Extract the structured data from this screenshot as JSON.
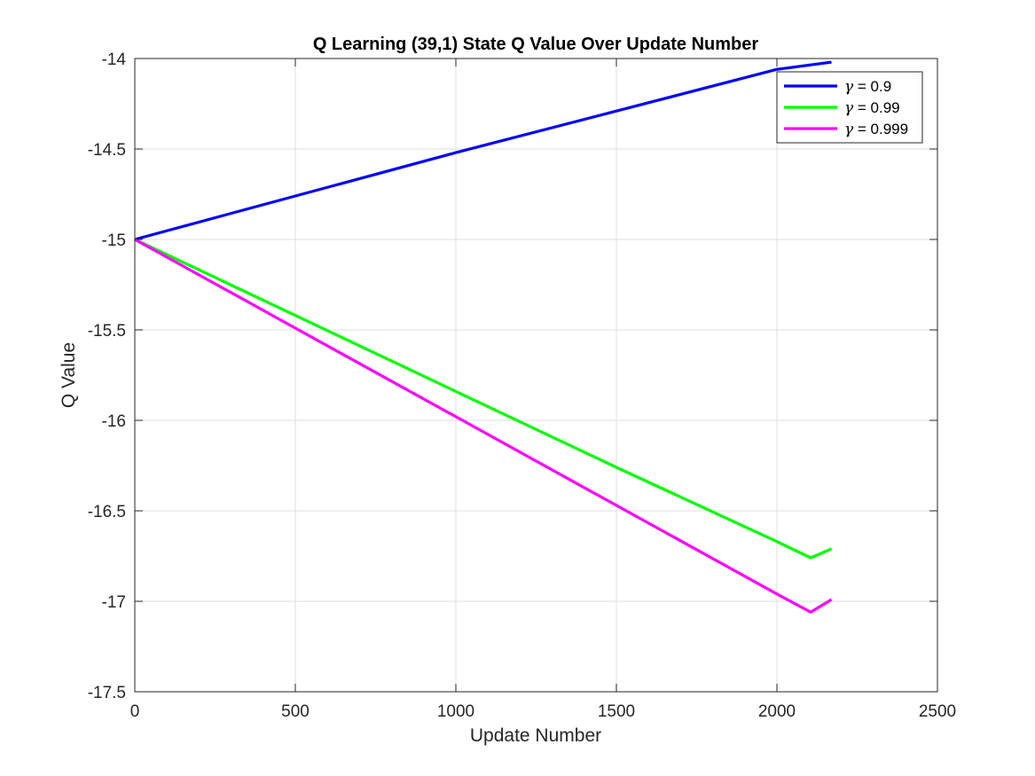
{
  "chart_data": {
    "type": "line",
    "title": "Q Learning (39,1) State Q Value Over Update Number",
    "xlabel": "Update Number",
    "ylabel": "Q Value",
    "xlim": [
      0,
      2500
    ],
    "ylim": [
      -17.5,
      -14
    ],
    "xticks": [
      0,
      500,
      1000,
      1500,
      2000,
      2500
    ],
    "yticks": [
      -14,
      -14.5,
      -15,
      -15.5,
      -16,
      -16.5,
      -17,
      -17.5
    ],
    "xtick_labels": [
      "0",
      "500",
      "1000",
      "1500",
      "2000",
      "2500"
    ],
    "ytick_labels": [
      "-14",
      "-14.5",
      "-15",
      "-15.5",
      "-16",
      "-16.5",
      "-17",
      "-17.5"
    ],
    "grid": true,
    "legend_position": "top-right",
    "series": [
      {
        "name": "0.9",
        "color": "#0000ff",
        "x": [
          0,
          500,
          1000,
          1500,
          2000,
          2170
        ],
        "y": [
          -15.0,
          -14.76,
          -14.52,
          -14.29,
          -14.06,
          -14.02
        ]
      },
      {
        "name": "0.99",
        "color": "#00ff00",
        "x": [
          0,
          500,
          1000,
          1500,
          2000,
          2105,
          2170
        ],
        "y": [
          -15.0,
          -15.42,
          -15.84,
          -16.26,
          -16.67,
          -16.76,
          -16.71
        ]
      },
      {
        "name": "0.999",
        "color": "#ff00ff",
        "x": [
          0,
          500,
          1000,
          1500,
          2000,
          2105,
          2170
        ],
        "y": [
          -15.0,
          -15.49,
          -15.98,
          -16.47,
          -16.96,
          -17.06,
          -16.99
        ]
      }
    ]
  },
  "legend": {
    "symbol": "γ",
    "equals": " = "
  }
}
